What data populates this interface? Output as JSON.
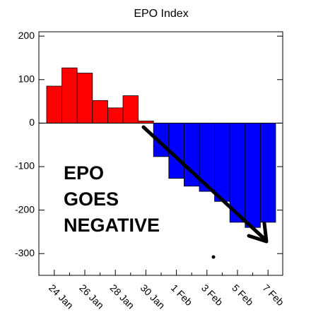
{
  "chart_data": {
    "type": "bar",
    "title": "EPO Index",
    "categories": [
      "24 Jan",
      null,
      "26 Jan",
      null,
      "28 Jan",
      null,
      "30 Jan",
      null,
      "1 Feb",
      null,
      "3 Feb",
      null,
      "5 Feb",
      null,
      "7 Feb"
    ],
    "values": [
      85,
      127,
      115,
      52,
      35,
      63,
      5,
      -77,
      -127,
      -145,
      -157,
      -180,
      -228,
      -240,
      -228
    ],
    "positive_color": "#ff0000",
    "negative_color": "#0000ff",
    "ylim": [
      -350,
      210
    ],
    "yticks": [
      -300,
      -200,
      -100,
      0,
      100,
      200
    ],
    "annotation": [
      "EPO",
      "GOES",
      "NEGATIVE"
    ]
  }
}
